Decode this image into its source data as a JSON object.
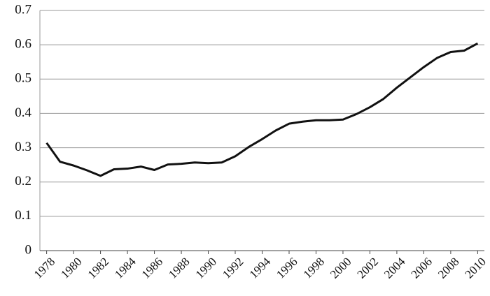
{
  "chart_data": {
    "type": "line",
    "x": [
      1978,
      1979,
      1980,
      1981,
      1982,
      1983,
      1984,
      1985,
      1986,
      1987,
      1988,
      1989,
      1990,
      1991,
      1992,
      1993,
      1994,
      1995,
      1996,
      1997,
      1998,
      1999,
      2000,
      2001,
      2002,
      2003,
      2004,
      2005,
      2006,
      2007,
      2008,
      2009,
      2010
    ],
    "values": [
      0.314,
      0.259,
      0.248,
      0.234,
      0.218,
      0.237,
      0.239,
      0.245,
      0.235,
      0.251,
      0.253,
      0.257,
      0.255,
      0.257,
      0.275,
      0.302,
      0.325,
      0.35,
      0.37,
      0.376,
      0.38,
      0.38,
      0.382,
      0.398,
      0.418,
      0.442,
      0.475,
      0.505,
      0.535,
      0.562,
      0.579,
      0.583,
      0.604
    ],
    "color": "#111111",
    "xlim": [
      1977.5,
      2010.5
    ],
    "xticks": [
      1978,
      1980,
      1982,
      1984,
      1986,
      1988,
      1990,
      1992,
      1994,
      1996,
      1998,
      2000,
      2002,
      2004,
      2006,
      2008,
      2010
    ],
    "ylim": [
      0,
      0.7
    ],
    "yticks": [
      0,
      0.1,
      0.2,
      0.3,
      0.4,
      0.5,
      0.6,
      0.7
    ],
    "grid": true
  }
}
